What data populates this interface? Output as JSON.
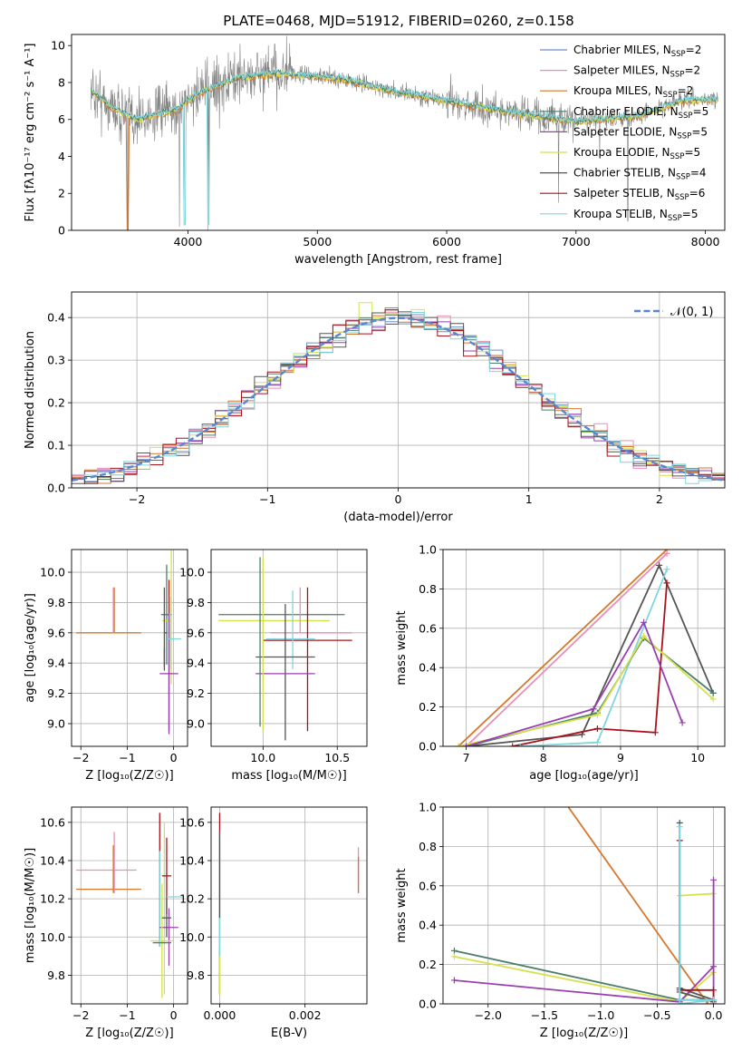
{
  "figure_title": "PLATE=0468, MJD=51912, FIBERID=0260, z=0.158",
  "colors": {
    "chabrier_miles": "#6f8fc4",
    "salpeter_miles": "#e98fb4",
    "kroupa_miles": "#d6772e",
    "chabrier_elodie": "#4d7e6a",
    "salpeter_elodie": "#9a3fb0",
    "kroupa_elodie": "#d4e24b",
    "chabrier_stelib": "#555555",
    "salpeter_stelib": "#a8121b",
    "kroupa_stelib": "#7fd6df",
    "normal": "#5b86d4",
    "obs": "#808080"
  },
  "legend_spectrum": [
    {
      "pre": "Chabrier MILES, N",
      "sub": "SSP",
      "post": "=2",
      "color": "#6f8fc4"
    },
    {
      "pre": "Salpeter MILES, N",
      "sub": "SSP",
      "post": "=2",
      "color": "#e98fb4"
    },
    {
      "pre": "Kroupa MILES, N",
      "sub": "SSP",
      "post": "=2",
      "color": "#d6772e"
    },
    {
      "pre": "Chabrier ELODIE, N",
      "sub": "SSP",
      "post": "=5",
      "color": "#4d7e6a"
    },
    {
      "pre": "Salpeter ELODIE, N",
      "sub": "SSP",
      "post": "=5",
      "color": "#9a3fb0"
    },
    {
      "pre": "Kroupa ELODIE, N",
      "sub": "SSP",
      "post": "=5",
      "color": "#d4e24b"
    },
    {
      "pre": "Chabrier STELIB, N",
      "sub": "SSP",
      "post": "=4",
      "color": "#555555"
    },
    {
      "pre": "Salpeter STELIB, N",
      "sub": "SSP",
      "post": "=6",
      "color": "#a8121b"
    },
    {
      "pre": "Kroupa STELIB, N",
      "sub": "SSP",
      "post": "=5",
      "color": "#7fd6df"
    }
  ],
  "chart_data": [
    {
      "id": "spectrum",
      "type": "line",
      "xlabel": "wavelength [Angstrom, rest frame]",
      "ylabel": "Flux [fλ10⁻¹⁷ erg cm⁻² s⁻¹ A⁻¹]",
      "xlim": [
        3100,
        8150
      ],
      "ylim": [
        0,
        10.6
      ],
      "xticks": [
        4000,
        5000,
        6000,
        7000,
        8000
      ],
      "yticks": [
        0,
        2,
        4,
        6,
        8,
        10
      ],
      "grid": false,
      "legend": "top-right",
      "x_range_data": [
        3250,
        8100
      ],
      "continuum_anchors": [
        [
          3250,
          7.6
        ],
        [
          3400,
          6.7
        ],
        [
          3600,
          6.0
        ],
        [
          3900,
          6.5
        ],
        [
          4100,
          7.5
        ],
        [
          4400,
          8.3
        ],
        [
          4700,
          8.5
        ],
        [
          5200,
          8.2
        ],
        [
          5600,
          7.5
        ],
        [
          6000,
          7.0
        ],
        [
          6500,
          6.4
        ],
        [
          7000,
          5.9
        ],
        [
          7500,
          6.2
        ],
        [
          7800,
          7.0
        ],
        [
          8100,
          7.1
        ]
      ]
    },
    {
      "id": "residuals",
      "type": "histogram",
      "xlabel": "(data-model)/error",
      "ylabel": "Normed distribution",
      "xlim": [
        -2.5,
        2.5
      ],
      "ylim": [
        0,
        0.46
      ],
      "xticks": [
        -2,
        -1,
        0,
        1,
        2
      ],
      "yticks": [
        0.0,
        0.1,
        0.2,
        0.3,
        0.4
      ],
      "grid": true,
      "legend": "top-right",
      "normal_label": "𝒩(0, 1)",
      "bin_edges_start": -2.5,
      "bin_width": 0.1,
      "n_bins": 50
    },
    {
      "id": "age_vs_Z",
      "type": "errorbar",
      "xlabel": "Z [log₁₀(Z/Z☉)]",
      "ylabel": "age  [log₁₀(age/yr)]",
      "xlim": [
        -2.2,
        0.3
      ],
      "ylim": [
        8.85,
        10.15
      ],
      "xticks": [
        -2,
        -1,
        0
      ],
      "yticks": [
        9.0,
        9.2,
        9.4,
        9.6,
        9.8,
        10.0
      ],
      "grid": true,
      "points": [
        {
          "x": -0.7,
          "xerr": [
            1.4,
            0
          ],
          "y": 9.6,
          "yerr": [
            0,
            0
          ],
          "color": "#d6772e"
        },
        {
          "x": -1.28,
          "xerr": [
            0,
            0
          ],
          "y": 9.75,
          "yerr": [
            0.15,
            0.15
          ],
          "color": "#d6772e"
        },
        {
          "x": -1.3,
          "xerr": [
            0,
            0
          ],
          "y": 9.75,
          "yerr": [
            0.15,
            0.15
          ],
          "color": "#e98fb4"
        },
        {
          "x": -0.15,
          "xerr": [
            0.12,
            0.12
          ],
          "y": 9.72,
          "yerr": [
            0.33,
            0.33
          ],
          "color": "#4d7e6a"
        },
        {
          "x": -0.05,
          "xerr": [
            0.2,
            0.0
          ],
          "y": 9.68,
          "yerr": [
            0.42,
            0.72
          ],
          "color": "#d4e24b"
        },
        {
          "x": -0.2,
          "xerr": [
            0,
            0.05
          ],
          "y": 9.6,
          "yerr": [
            0.25,
            0.3
          ],
          "color": "#555555"
        },
        {
          "x": -0.1,
          "xerr": [
            0,
            0
          ],
          "y": 9.55,
          "yerr": [
            0.6,
            0.4
          ],
          "color": "#a8121b"
        },
        {
          "x": -0.1,
          "xerr": [
            0.2,
            0.2
          ],
          "y": 9.33,
          "yerr": [
            0.4,
            0.4
          ],
          "color": "#9a3fb0"
        },
        {
          "x": -0.08,
          "xerr": [
            0.05,
            0.25
          ],
          "y": 9.56,
          "yerr": [
            0.2,
            0.28
          ],
          "color": "#7fd6df"
        },
        {
          "x": -0.2,
          "xerr": [
            0,
            0
          ],
          "y": 9.44,
          "yerr": [
            0.06,
            0.06
          ],
          "color": "#555555"
        }
      ]
    },
    {
      "id": "age_vs_mass",
      "type": "errorbar",
      "xlabel": "mass [log₁₀(M/M☉)]",
      "ylabel": "",
      "xlim": [
        9.65,
        10.7
      ],
      "ylim": [
        8.85,
        10.15
      ],
      "xticks": [
        10.0,
        10.5
      ],
      "yticks": [
        9.0,
        9.2,
        9.4,
        9.6,
        9.8,
        10.0
      ],
      "grid": true,
      "points": [
        {
          "x": 10.15,
          "xerr": [
            0.45,
            0.4
          ],
          "y": 9.72,
          "yerr": [
            0,
            0
          ],
          "color": "#4d7e6a"
        },
        {
          "x": 10.2,
          "xerr": [
            0.5,
            0.25
          ],
          "y": 9.68,
          "yerr": [
            0,
            0
          ],
          "color": "#d4e24b"
        },
        {
          "x": 10.35,
          "xerr": [
            0.3,
            0.25
          ],
          "y": 9.6,
          "yerr": [
            0,
            0
          ],
          "color": "#e98fb4"
        },
        {
          "x": 10.3,
          "xerr": [
            0.3,
            0.3
          ],
          "y": 9.55,
          "yerr": [
            0.6,
            0.35
          ],
          "color": "#a8121b"
        },
        {
          "x": 10.2,
          "xerr": [
            0.18,
            0.15
          ],
          "y": 9.56,
          "yerr": [
            0.2,
            0.32
          ],
          "color": "#7fd6df"
        },
        {
          "x": 10.15,
          "xerr": [
            0.2,
            0.2
          ],
          "y": 9.44,
          "yerr": [
            0.55,
            0.35
          ],
          "color": "#555555"
        },
        {
          "x": 10.05,
          "xerr": [
            0.1,
            0.3
          ],
          "y": 9.33,
          "yerr": [
            0,
            0
          ],
          "color": "#9a3fb0"
        },
        {
          "x": 9.98,
          "xerr": [
            0,
            0
          ],
          "y": 9.6,
          "yerr": [
            0.62,
            0.5
          ],
          "color": "#4d7e6a"
        },
        {
          "x": 10.0,
          "xerr": [
            0,
            0
          ],
          "y": 9.6,
          "yerr": [
            0.65,
            0.5
          ],
          "color": "#d4e24b"
        },
        {
          "x": 10.25,
          "xerr": [
            0,
            0
          ],
          "y": 9.75,
          "yerr": [
            0.15,
            0.15
          ],
          "color": "#e98fb4"
        }
      ]
    },
    {
      "id": "weight_vs_age",
      "type": "line",
      "xlabel": "age  [log₁₀(age/yr)]",
      "ylabel": "mass weight",
      "xlim": [
        6.7,
        10.35
      ],
      "ylim": [
        0,
        1.0
      ],
      "xticks": [
        7,
        8,
        9,
        10
      ],
      "yticks": [
        0.0,
        0.2,
        0.4,
        0.6,
        0.8,
        1.0
      ],
      "grid": true,
      "series": [
        {
          "color": "#d6772e",
          "x": [
            6.9,
            9.6
          ],
          "y": [
            0.0,
            1.0
          ]
        },
        {
          "color": "#e98fb4",
          "x": [
            7.0,
            9.6
          ],
          "y": [
            0.0,
            0.98
          ]
        },
        {
          "color": "#555555",
          "x": [
            7.0,
            8.5,
            9.5,
            10.2
          ],
          "y": [
            0.0,
            0.06,
            0.92,
            0.27
          ]
        },
        {
          "color": "#a8121b",
          "x": [
            7.6,
            8.7,
            9.45,
            9.6
          ],
          "y": [
            0.0,
            0.09,
            0.07,
            0.83
          ]
        },
        {
          "color": "#7fd6df",
          "x": [
            7.7,
            8.7,
            9.6
          ],
          "y": [
            0.0,
            0.02,
            0.9
          ]
        },
        {
          "color": "#4d7e6a",
          "x": [
            7.0,
            8.7,
            9.3,
            10.2
          ],
          "y": [
            0.0,
            0.17,
            0.55,
            0.27
          ]
        },
        {
          "color": "#d4e24b",
          "x": [
            6.9,
            8.7,
            9.3,
            10.2
          ],
          "y": [
            0.0,
            0.16,
            0.56,
            0.24
          ]
        },
        {
          "color": "#9a3fb0",
          "x": [
            7.0,
            8.65,
            9.3,
            9.8
          ],
          "y": [
            0.0,
            0.19,
            0.63,
            0.12
          ]
        }
      ]
    },
    {
      "id": "mass_vs_Z",
      "type": "errorbar",
      "xlabel": "Z [log₁₀(Z/Z☉)]",
      "ylabel": "mass [log₁₀(M/M☉)]",
      "xlim": [
        -2.2,
        0.3
      ],
      "ylim": [
        9.65,
        10.68
      ],
      "xticks": [
        -2,
        -1,
        0
      ],
      "yticks": [
        9.8,
        10.0,
        10.2,
        10.4,
        10.6
      ],
      "grid": true,
      "points": [
        {
          "x": -0.7,
          "xerr": [
            1.4,
            0
          ],
          "y": 10.25,
          "yerr": [
            0,
            0
          ],
          "color": "#d6772e"
        },
        {
          "x": -0.8,
          "xerr": [
            1.3,
            0
          ],
          "y": 10.35,
          "yerr": [
            0,
            0
          ],
          "color": "#e98fb4"
        },
        {
          "x": -1.28,
          "xerr": [
            0,
            0
          ],
          "y": 10.35,
          "yerr": [
            0.12,
            0.2
          ],
          "color": "#e98fb4"
        },
        {
          "x": -1.3,
          "xerr": [
            0,
            0
          ],
          "y": 10.3,
          "yerr": [
            0.07,
            0.18
          ],
          "color": "#d6772e"
        },
        {
          "x": -0.3,
          "xerr": [
            0,
            0
          ],
          "y": 10.3,
          "yerr": [
            0.35,
            0.35
          ],
          "color": "#a8121b"
        },
        {
          "x": -0.3,
          "xerr": [
            0,
            0
          ],
          "y": 10.2,
          "yerr": [
            0.25,
            0.25
          ],
          "color": "#7fd6df"
        },
        {
          "x": -0.2,
          "xerr": [
            0,
            0
          ],
          "y": 10.2,
          "yerr": [
            0.5,
            0.4
          ],
          "color": "#d4e24b"
        },
        {
          "x": -0.15,
          "xerr": [
            0.1,
            0.1
          ],
          "y": 10.32,
          "yerr": [
            0.2,
            0.2
          ],
          "color": "#a8121b"
        },
        {
          "x": -0.1,
          "xerr": [
            0.2,
            0.2
          ],
          "y": 10.05,
          "yerr": [
            0.2,
            0.1
          ],
          "color": "#9a3fb0"
        },
        {
          "x": -0.25,
          "xerr": [
            0.25,
            0.25
          ],
          "y": 9.98,
          "yerr": [
            0.3,
            0.3
          ],
          "color": "#d4e24b"
        },
        {
          "x": -0.25,
          "xerr": [
            0.2,
            0.2
          ],
          "y": 9.97,
          "yerr": [
            0,
            0
          ],
          "color": "#4d7e6a"
        },
        {
          "x": -0.15,
          "xerr": [
            0.1,
            0.1
          ],
          "y": 10.1,
          "yerr": [
            0.1,
            0.1
          ],
          "color": "#555555"
        },
        {
          "x": -0.1,
          "xerr": [
            0.05,
            0.3
          ],
          "y": 10.21,
          "yerr": [
            0,
            0
          ],
          "color": "#7fd6df"
        }
      ]
    },
    {
      "id": "mass_vs_ebv",
      "type": "errorbar",
      "xlabel": "E(B-V)",
      "ylabel": "",
      "xlim": [
        -0.0002,
        0.00345
      ],
      "ylim": [
        9.65,
        10.68
      ],
      "xticks": [
        0.0,
        0.002
      ],
      "yticks": [
        9.8,
        10.0,
        10.2,
        10.4,
        10.6
      ],
      "grid": true,
      "points": [
        {
          "x": 0.0,
          "xerr": [
            0,
            0
          ],
          "y": 10.25,
          "yerr": [
            0.55,
            0.4
          ],
          "color": "#a8121b"
        },
        {
          "x": 0.0,
          "xerr": [
            0,
            0
          ],
          "y": 10.2,
          "yerr": [
            0.5,
            0.35
          ],
          "color": "#d4e24b"
        },
        {
          "x": 0.0,
          "xerr": [
            0,
            0
          ],
          "y": 10.1,
          "yerr": [
            0.2,
            0.4
          ],
          "color": "#7fd6df"
        },
        {
          "x": 0.0,
          "xerr": [
            0,
            0
          ],
          "y": 10.3,
          "yerr": [
            0.2,
            0.25
          ],
          "color": "#555555"
        },
        {
          "x": 0.00325,
          "xerr": [
            0,
            0
          ],
          "y": 10.35,
          "yerr": [
            0.12,
            0.12
          ],
          "color": "#e98fb4"
        },
        {
          "x": 0.00325,
          "xerr": [
            0,
            0
          ],
          "y": 10.3,
          "yerr": [
            0.07,
            0.12
          ],
          "color": "#d6772e"
        }
      ]
    },
    {
      "id": "weight_vs_Z",
      "type": "line",
      "xlabel": "Z [log₁₀(Z/Z☉)]",
      "ylabel": "mass weight",
      "xlim": [
        -2.4,
        0.1
      ],
      "ylim": [
        0,
        1.0
      ],
      "xticks": [
        -2.0,
        -1.5,
        -1.0,
        -0.5,
        0.0
      ],
      "yticks": [
        0.0,
        0.2,
        0.4,
        0.6,
        0.8,
        1.0
      ],
      "grid": true,
      "series": [
        {
          "color": "#d6772e",
          "x": [
            -1.35,
            -0.05
          ],
          "y": [
            1.05,
            0.0
          ]
        },
        {
          "color": "#4d7e6a",
          "x": [
            -2.3,
            -0.3,
            0.0
          ],
          "y": [
            0.27,
            0.02,
            0.02
          ]
        },
        {
          "color": "#d4e24b",
          "x": [
            -2.3,
            -0.3,
            0.0,
            0.0,
            -0.3
          ],
          "y": [
            0.24,
            0.01,
            0.16,
            0.56,
            0.55
          ]
        },
        {
          "color": "#9a3fb0",
          "x": [
            -2.3,
            -0.3,
            0.0,
            0.0,
            0.0
          ],
          "y": [
            0.12,
            0.01,
            0.19,
            0.63,
            0.0
          ]
        },
        {
          "color": "#555555",
          "x": [
            -0.3,
            -0.3,
            0.0,
            0.0,
            -0.3
          ],
          "y": [
            0.92,
            0.08,
            0.02,
            0.01,
            0.06
          ]
        },
        {
          "color": "#a8121b",
          "x": [
            -0.3,
            -0.3,
            0.0,
            0.0
          ],
          "y": [
            0.83,
            0.07,
            0.07,
            0.02
          ]
        },
        {
          "color": "#7fd6df",
          "x": [
            -0.3,
            -0.3,
            0.0,
            -0.3
          ],
          "y": [
            0.9,
            0.0,
            0.02,
            0.02
          ]
        }
      ]
    }
  ]
}
